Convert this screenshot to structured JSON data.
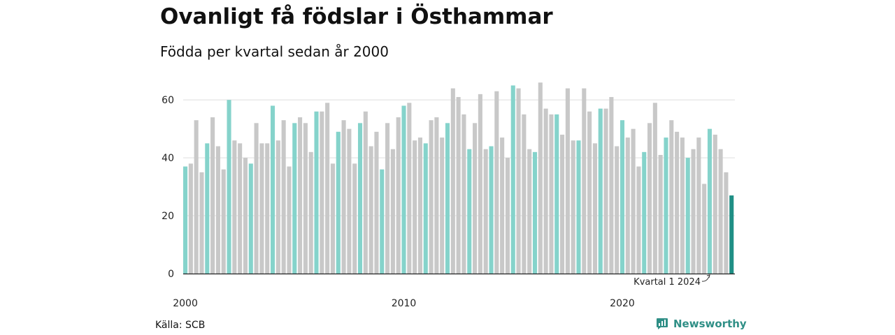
{
  "chart_data": {
    "type": "bar",
    "title": "Ovanligt få födslar i Östhammar",
    "subtitle": "Födda per kvartal sedan år 2000",
    "source": "Källa: SCB",
    "brand": "Newsworthy",
    "x_tick_labels": [
      "2000",
      "2010",
      "2020"
    ],
    "y_ticks": [
      0,
      20,
      40,
      60
    ],
    "ylim": [
      0,
      68
    ],
    "grid": true,
    "colors": {
      "q1": "#85d3cb",
      "other": "#c8c8c8",
      "highlight": "#1f8f85",
      "grid": "#dddddd",
      "axis": "#222222"
    },
    "annotation": {
      "text": "Kvartal 1 2024",
      "target_index": 96
    },
    "series": [
      {
        "values": [
          37,
          38,
          53,
          35,
          45,
          54,
          44,
          36,
          60,
          46,
          45,
          40,
          38,
          52,
          45,
          45,
          58,
          46,
          53,
          37,
          52,
          54,
          52,
          42,
          56,
          56,
          59,
          38,
          49,
          53,
          50,
          38,
          52,
          56,
          44,
          49,
          36,
          52,
          43,
          54,
          58,
          59,
          46,
          47,
          45,
          53,
          54,
          47,
          52,
          64,
          61,
          55,
          43,
          52,
          62,
          43,
          44,
          63,
          47,
          40,
          65,
          64,
          55,
          43,
          42,
          66,
          57,
          55,
          55,
          48,
          64,
          46,
          46,
          64,
          56,
          45,
          57,
          57,
          61,
          44,
          53,
          47,
          50,
          37,
          42,
          52,
          59,
          41,
          47,
          53,
          49,
          47,
          40,
          43,
          47,
          31,
          50,
          48,
          43,
          35,
          27
        ]
      }
    ]
  }
}
